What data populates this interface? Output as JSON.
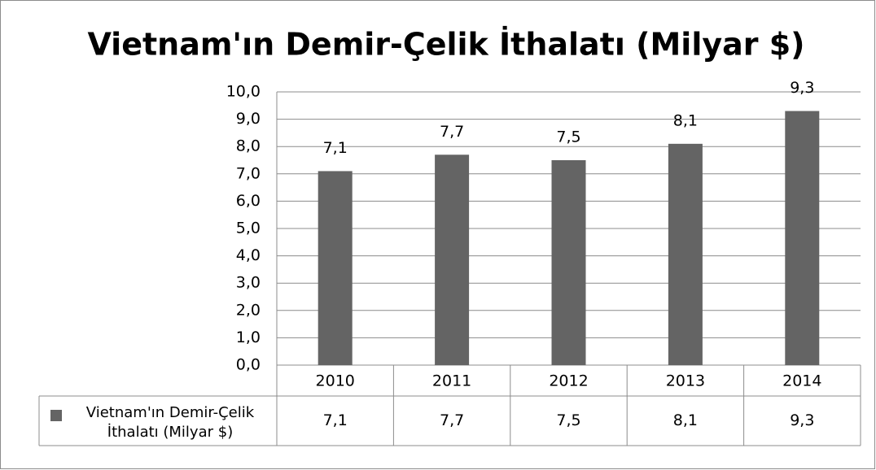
{
  "chart_data": {
    "type": "bar",
    "title": "Vietnam'ın Demir-Çelik İthalatı (Milyar $)",
    "categories": [
      "2010",
      "2011",
      "2012",
      "2013",
      "2014"
    ],
    "series": [
      {
        "name": "Vietnam'ın Demir-Çelik İthalatı (Milyar $)",
        "color": "#646464",
        "values": [
          7.1,
          7.7,
          7.5,
          8.1,
          9.3
        ],
        "value_labels": [
          "7,1",
          "7,7",
          "7,5",
          "8,1",
          "9,3"
        ]
      }
    ],
    "ylim": [
      0,
      10
    ],
    "yticks": [
      {
        "value": 0,
        "label": "0,0"
      },
      {
        "value": 1,
        "label": "1,0"
      },
      {
        "value": 2,
        "label": "2,0"
      },
      {
        "value": 3,
        "label": "3,0"
      },
      {
        "value": 4,
        "label": "4,0"
      },
      {
        "value": 5,
        "label": "5,0"
      },
      {
        "value": 6,
        "label": "6,0"
      },
      {
        "value": 7,
        "label": "7,0"
      },
      {
        "value": 8,
        "label": "8,0"
      },
      {
        "value": 9,
        "label": "9,0"
      },
      {
        "value": 10,
        "label": "10,0"
      }
    ],
    "grid": true,
    "data_table": true
  }
}
